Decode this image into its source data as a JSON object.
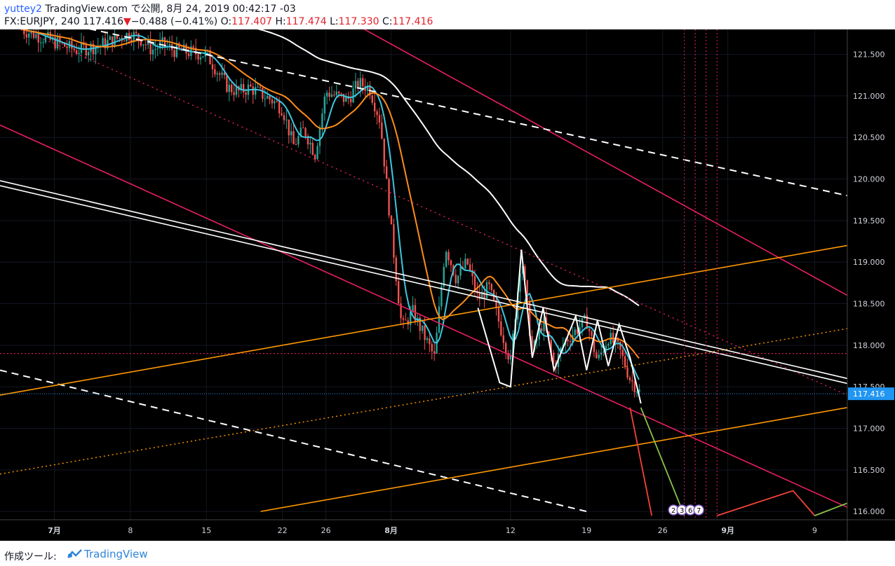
{
  "header": {
    "author": "yuttey2",
    "site": "TradingView.com",
    "published": "で公開, 8月 24, 2019 00:42:17 -03",
    "symbol": "FX:EURJPY, 240",
    "last": "117.416",
    "change_arrow": "▼",
    "change": "−0.488 (−0.41%)",
    "o_label": "O:",
    "o_value": "117.407",
    "h_label": "H:",
    "h_value": "117.474",
    "l_label": "L:",
    "l_value": "117.330",
    "c_label": "C:",
    "c_value": "117.416"
  },
  "footer": {
    "made_with": "作成ツール:",
    "logo_icon": "tradingview-logo-icon",
    "logo_text": "TradingView"
  },
  "colors": {
    "background": "#000000",
    "bull": "#26a69a",
    "bear": "#ef5350",
    "fast_ma": "#3ec6e0",
    "mid_ma": "#ff8c1a",
    "slow_ma": "#ffffff",
    "magenta": "#e91e63",
    "orange": "#ff9800",
    "last_price_badge": "#2196f3",
    "green_path": "#8bc34a",
    "red_path": "#f44336"
  },
  "chart_data": {
    "type": "candlestick",
    "timeframe": "240",
    "symbol": "FX:EURJPY",
    "y_axis": {
      "ticks": [
        "121.500",
        "121.000",
        "120.500",
        "120.000",
        "119.500",
        "119.000",
        "118.500",
        "118.000",
        "117.500",
        "117.000",
        "116.500",
        "116.000"
      ],
      "range": [
        115.9,
        121.8
      ]
    },
    "x_axis": {
      "ticks": [
        {
          "label": "7月",
          "date": "2019-07-01",
          "bold": true
        },
        {
          "label": "8",
          "date": "2019-07-08"
        },
        {
          "label": "15",
          "date": "2019-07-15"
        },
        {
          "label": "22",
          "date": "2019-07-22"
        },
        {
          "label": "26",
          "date": "2019-07-26"
        },
        {
          "label": "8月",
          "date": "2019-08-01",
          "bold": true
        },
        {
          "label": "12",
          "date": "2019-08-12"
        },
        {
          "label": "19",
          "date": "2019-08-19"
        },
        {
          "label": "26",
          "date": "2019-08-26"
        },
        {
          "label": "9月",
          "date": "2019-09-01",
          "bold": true
        },
        {
          "label": "9",
          "date": "2019-09-09"
        }
      ]
    },
    "last_price": "117.416",
    "close_path": [
      [
        "2019-06-28",
        121.8
      ],
      [
        "2019-07-01",
        121.65
      ],
      [
        "2019-07-03",
        121.55
      ],
      [
        "2019-07-05",
        121.6
      ],
      [
        "2019-07-08",
        121.75
      ],
      [
        "2019-07-09",
        121.68
      ],
      [
        "2019-07-10",
        121.55
      ],
      [
        "2019-07-11",
        121.62
      ],
      [
        "2019-07-12",
        121.55
      ],
      [
        "2019-07-15",
        121.5
      ],
      [
        "2019-07-16",
        121.3
      ],
      [
        "2019-07-17",
        121.1
      ],
      [
        "2019-07-18",
        121.05
      ],
      [
        "2019-07-19",
        121.1
      ],
      [
        "2019-07-21",
        120.95
      ],
      [
        "2019-07-22",
        120.85
      ],
      [
        "2019-07-23",
        120.4
      ],
      [
        "2019-07-24",
        120.6
      ],
      [
        "2019-07-25",
        120.3
      ],
      [
        "2019-07-26",
        121.05
      ],
      [
        "2019-07-28",
        120.95
      ],
      [
        "2019-07-29",
        121.15
      ],
      [
        "2019-07-30",
        121.1
      ],
      [
        "2019-07-31",
        120.7
      ],
      [
        "2019-08-01",
        119.4
      ],
      [
        "2019-08-02",
        118.2
      ],
      [
        "2019-08-03",
        118.4
      ],
      [
        "2019-08-05",
        117.85
      ],
      [
        "2019-08-06",
        119.2
      ],
      [
        "2019-08-07",
        118.8
      ],
      [
        "2019-08-08",
        119.0
      ],
      [
        "2019-08-09",
        118.55
      ],
      [
        "2019-08-10",
        118.7
      ],
      [
        "2019-08-12",
        117.8
      ],
      [
        "2019-08-13",
        119.1
      ],
      [
        "2019-08-14",
        117.9
      ],
      [
        "2019-08-15",
        118.3
      ],
      [
        "2019-08-16",
        117.75
      ],
      [
        "2019-08-17",
        118.05
      ],
      [
        "2019-08-19",
        118.3
      ],
      [
        "2019-08-20",
        117.8
      ],
      [
        "2019-08-21",
        118.1
      ],
      [
        "2019-08-22",
        117.95
      ],
      [
        "2019-08-23",
        117.6
      ],
      [
        "2019-08-24",
        117.416
      ]
    ],
    "annotations": {
      "markers": [
        "2",
        "3",
        "6",
        "7"
      ]
    }
  }
}
